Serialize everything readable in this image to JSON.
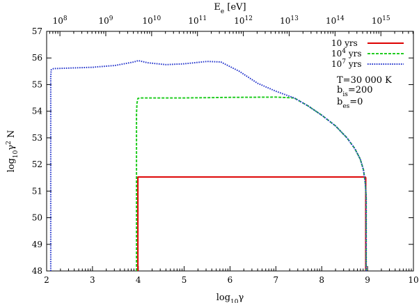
{
  "chart_data": {
    "type": "line",
    "xlabel": {
      "base": "log",
      "sub": "10",
      "tail": "γ"
    },
    "ylabel": {
      "base": "log",
      "sub": "10",
      "mid": "γ",
      "sup": "2",
      "tail": " N"
    },
    "top_axis_label": {
      "base": "E",
      "sub": "e",
      "tail": " [eV]"
    },
    "xlim": [
      2,
      10
    ],
    "ylim": [
      48,
      57
    ],
    "x_ticks": [
      "2",
      "3",
      "4",
      "5",
      "6",
      "7",
      "8",
      "9",
      "10"
    ],
    "y_ticks": [
      "48",
      "49",
      "50",
      "51",
      "52",
      "53",
      "54",
      "55",
      "56",
      "57"
    ],
    "top_ticks": [
      {
        "exp": "8",
        "gamma": 2.29
      },
      {
        "exp": "9",
        "gamma": 3.29
      },
      {
        "exp": "10",
        "gamma": 4.29
      },
      {
        "exp": "11",
        "gamma": 5.29
      },
      {
        "exp": "12",
        "gamma": 6.29
      },
      {
        "exp": "13",
        "gamma": 7.29
      },
      {
        "exp": "14",
        "gamma": 8.29
      },
      {
        "exp": "15",
        "gamma": 9.29
      }
    ],
    "grid": false,
    "legend_position": "top-right",
    "series": [
      {
        "name": "10 yrs",
        "name_base": "10",
        "name_sup": "",
        "name_tail": " yrs",
        "color": "#dd0000",
        "dash": "solid",
        "x": [
          3.99,
          3.99,
          4.0,
          4.5,
          5,
          6,
          7,
          8,
          8.95,
          8.96,
          8.96
        ],
        "y": [
          48,
          51.53,
          51.53,
          51.53,
          51.53,
          51.53,
          51.53,
          51.53,
          51.53,
          51.5,
          48
        ]
      },
      {
        "name": "10^4 yrs",
        "name_base": "10",
        "name_sup": "4",
        "name_tail": " yrs",
        "color": "#22cc22",
        "dash": "dashed",
        "x": [
          3.96,
          3.96,
          3.97,
          3.99,
          4.05,
          5,
          6,
          7,
          7.4,
          7.7,
          8.0,
          8.3,
          8.55,
          8.72,
          8.84,
          8.91,
          8.95,
          8.97,
          8.97
        ],
        "y": [
          48,
          53.9,
          54.3,
          54.48,
          54.5,
          54.5,
          54.52,
          54.53,
          54.5,
          54.2,
          53.85,
          53.45,
          53.0,
          52.6,
          52.2,
          51.8,
          51.3,
          50.8,
          48
        ]
      },
      {
        "name": "10^7 yrs",
        "name_base": "10",
        "name_sup": "7",
        "name_tail": " yrs",
        "color": "#2233cc",
        "dash": "dotted",
        "x": [
          2.09,
          2.09,
          2.1,
          2.15,
          2.5,
          3.0,
          3.5,
          3.9,
          4.0,
          4.2,
          4.6,
          5.0,
          5.5,
          5.8,
          6.2,
          6.6,
          7.0,
          7.4,
          7.7,
          8.0,
          8.3,
          8.55,
          8.72,
          8.84,
          8.91,
          8.95,
          8.97,
          8.97
        ],
        "y": [
          48,
          55.3,
          55.55,
          55.6,
          55.62,
          55.65,
          55.72,
          55.85,
          55.9,
          55.82,
          55.75,
          55.78,
          55.87,
          55.85,
          55.5,
          55.05,
          54.75,
          54.5,
          54.2,
          53.85,
          53.45,
          53.0,
          52.6,
          52.2,
          51.8,
          51.3,
          50.8,
          48
        ]
      }
    ],
    "annotations": {
      "temperature": "T=30 000 K",
      "b_is": {
        "base": "b",
        "sub": "is",
        "tail": "=200"
      },
      "b_es": {
        "base": "b",
        "sub": "es",
        "tail": "=0"
      }
    }
  }
}
